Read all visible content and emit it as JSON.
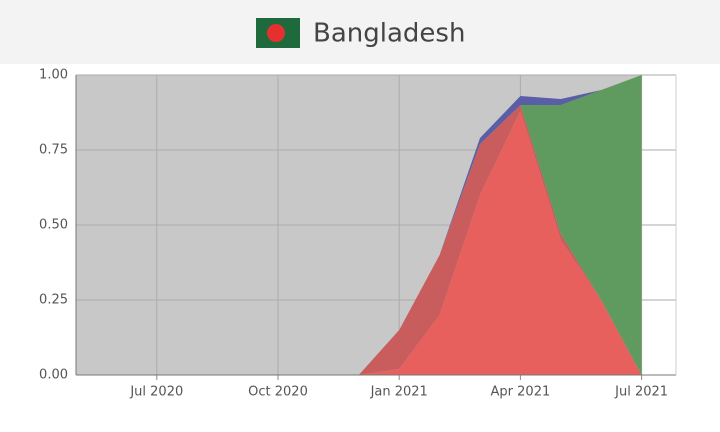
{
  "chart_data": {
    "type": "stacked-area",
    "title": "Bangladesh",
    "x": [
      "2020-05",
      "2020-06",
      "2020-07",
      "2020-08",
      "2020-09",
      "2020-10",
      "2020-11",
      "2020-12",
      "2021-01",
      "2021-02",
      "2021-03",
      "2021-04",
      "2021-05",
      "2021-06",
      "2021-07"
    ],
    "series": [
      {
        "color": "#e8605e",
        "values": [
          0,
          0,
          0,
          0,
          0,
          0,
          0,
          0,
          0.02,
          0.2,
          0.6,
          0.88,
          0.45,
          0.25,
          0
        ]
      },
      {
        "color": "#c95c5c",
        "values": [
          0,
          0,
          0,
          0,
          0,
          0,
          0,
          0,
          0.13,
          0.2,
          0.17,
          0.02,
          0.02,
          0,
          0
        ]
      },
      {
        "color": "#5f9a5f",
        "values": [
          0,
          0,
          0,
          0,
          0,
          0,
          0,
          0,
          0,
          0,
          0,
          0,
          0.43,
          0.7,
          1
        ]
      },
      {
        "color": "#5a5ea6",
        "values": [
          0,
          0,
          0,
          0,
          0,
          0,
          0,
          0,
          0,
          0,
          0.02,
          0.03,
          0.02,
          0,
          0
        ]
      }
    ],
    "background": "#c8c8c8",
    "xlim": [
      "2020-05",
      "2021-08"
    ],
    "xticks": [
      {
        "value": "2020-07",
        "label": "Jul 2020"
      },
      {
        "value": "2020-10",
        "label": "Oct 2020"
      },
      {
        "value": "2021-01",
        "label": "Jan 2021"
      },
      {
        "value": "2021-04",
        "label": "Apr 2021"
      },
      {
        "value": "2021-07",
        "label": "Jul 2021"
      }
    ],
    "ylim": [
      0,
      1
    ],
    "yticks": [
      {
        "value": 0,
        "label": "0.00"
      },
      {
        "value": 0.25,
        "label": "0.25"
      },
      {
        "value": 0.5,
        "label": "0.50"
      },
      {
        "value": 0.75,
        "label": "0.75"
      },
      {
        "value": 1,
        "label": "1.00"
      }
    ],
    "grid": true
  }
}
